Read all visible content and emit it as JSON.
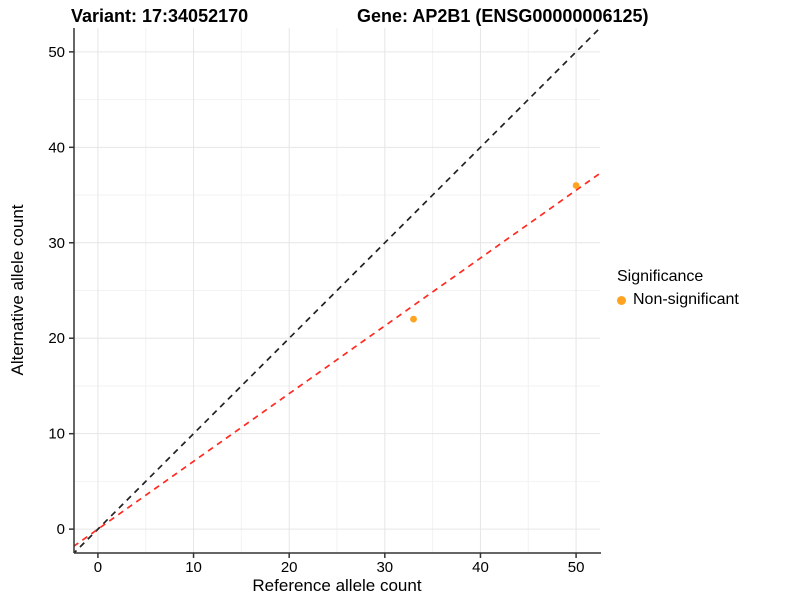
{
  "chart_data": {
    "type": "scatter",
    "titles": {
      "variant": "Variant: 17:34052170",
      "gene": "Gene: AP2B1 (ENSG00000006125)"
    },
    "xlabel": "Reference allele count",
    "ylabel": "Alternative allele count",
    "xlim": [
      -2.5,
      52.5
    ],
    "ylim": [
      -2.5,
      52.5
    ],
    "xticks": [
      0,
      10,
      20,
      30,
      40,
      50
    ],
    "yticks": [
      0,
      10,
      20,
      30,
      40,
      50
    ],
    "x_minor_ticks": [
      5,
      15,
      25,
      35,
      45
    ],
    "y_minor_ticks": [
      5,
      15,
      25,
      35,
      45
    ],
    "grid": true,
    "points": [
      {
        "x": 33,
        "y": 22,
        "series": "Non-significant"
      },
      {
        "x": 50,
        "y": 36,
        "series": "Non-significant"
      }
    ],
    "lines": [
      {
        "name": "identity-line",
        "slope": 1,
        "intercept": 0,
        "style": "dashed",
        "color": "#222222"
      },
      {
        "name": "expected-ratio-line",
        "slope": 0.71,
        "intercept": 0,
        "style": "dashed",
        "color": "#FF2A20"
      }
    ],
    "legend": {
      "title": "Significance",
      "position": "right",
      "items": [
        {
          "label": "Non-significant",
          "color": "#FFA320"
        }
      ]
    }
  },
  "colors": {
    "background": "#FFFFFF",
    "point": "#FFA320",
    "grid_major": "#E6E6E6",
    "grid_minor": "#F2F2F2",
    "axis_line": "#333333",
    "tick_text": "#000000"
  }
}
